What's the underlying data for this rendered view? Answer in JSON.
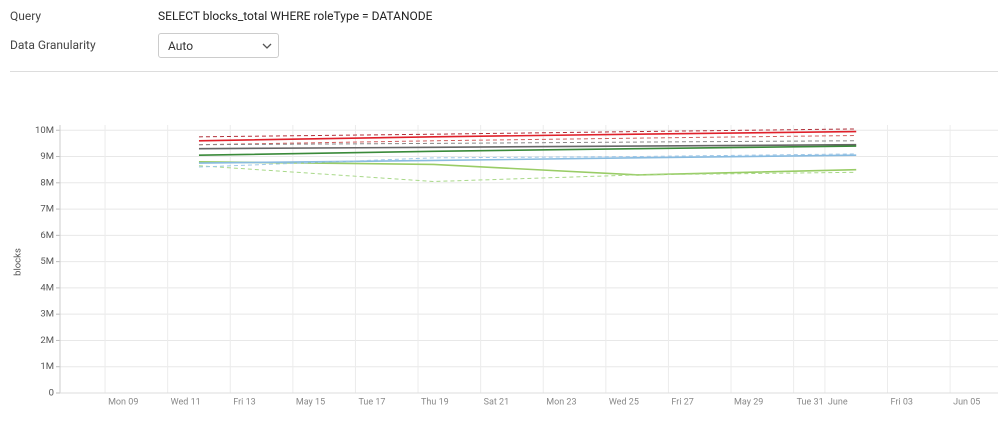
{
  "query": {
    "label": "Query",
    "text": "SELECT blocks_total WHERE roleType = DATANODE"
  },
  "granularity": {
    "label": "Data Granularity",
    "selected": "Auto"
  },
  "chart_data": {
    "type": "line",
    "y_label": "blocks",
    "x": [
      12,
      19.5,
      26,
      33
    ],
    "series": [
      {
        "color": "#e0202a",
        "dashed": false,
        "values": [
          9600000,
          9750000,
          9850000,
          9950000
        ]
      },
      {
        "color": "#b0303a",
        "dashed": true,
        "values": [
          9750000,
          9850000,
          9950000,
          10050000
        ]
      },
      {
        "color": "#d06060",
        "dashed": true,
        "values": [
          9450000,
          9600000,
          9700000,
          9800000
        ]
      },
      {
        "color": "#666666",
        "dashed": false,
        "values": [
          9300000,
          9350000,
          9400000,
          9450000
        ]
      },
      {
        "color": "#888888",
        "dashed": true,
        "values": [
          9450000,
          9500000,
          9550000,
          9600000
        ]
      },
      {
        "color": "#3a8a3a",
        "dashed": false,
        "values": [
          9050000,
          9200000,
          9300000,
          9400000
        ]
      },
      {
        "color": "#99cc66",
        "dashed": false,
        "values": [
          8800000,
          8700000,
          8300000,
          8500000
        ]
      },
      {
        "color": "#a8d888",
        "dashed": true,
        "values": [
          8650000,
          8050000,
          8300000,
          8400000
        ]
      },
      {
        "color": "#88bbe0",
        "dashed": false,
        "values": [
          8750000,
          8850000,
          8950000,
          9050000
        ]
      },
      {
        "color": "#a0c8e8",
        "dashed": true,
        "values": [
          8600000,
          8950000,
          9000000,
          9100000
        ]
      }
    ],
    "xlim": [
      7.56,
      37.53
    ],
    "xticks": [
      {
        "value": 9,
        "label": "Mon 09"
      },
      {
        "value": 11,
        "label": "Wed 11"
      },
      {
        "value": 13,
        "label": "Fri 13"
      },
      {
        "value": 15,
        "label": "May 15"
      },
      {
        "value": 17,
        "label": "Tue 17"
      },
      {
        "value": 19,
        "label": "Thu 19"
      },
      {
        "value": 21,
        "label": "Sat 21"
      },
      {
        "value": 23,
        "label": "Mon 23"
      },
      {
        "value": 25,
        "label": "Wed 25"
      },
      {
        "value": 27,
        "label": "Fri 27"
      },
      {
        "value": 29,
        "label": "May 29"
      },
      {
        "value": 31,
        "label": "Tue 31"
      },
      {
        "value": 32,
        "label": "June"
      },
      {
        "value": 34,
        "label": "Fri 03"
      },
      {
        "value": 36,
        "label": "Jun 05"
      }
    ],
    "ylim": [
      0,
      10200000
    ],
    "yticks": [
      0,
      {
        "value": 1000000,
        "label": "1M"
      },
      {
        "value": 2000000,
        "label": "2M"
      },
      {
        "value": 3000000,
        "label": "3M"
      },
      {
        "value": 4000000,
        "label": "4M"
      },
      {
        "value": 5000000,
        "label": "5M"
      },
      {
        "value": 6000000,
        "label": "6M"
      },
      {
        "value": 7000000,
        "label": "7M"
      },
      {
        "value": 8000000,
        "label": "8M"
      },
      {
        "value": 9000000,
        "label": "9M"
      },
      {
        "value": 10000000,
        "label": "10M"
      }
    ],
    "grid": true
  }
}
